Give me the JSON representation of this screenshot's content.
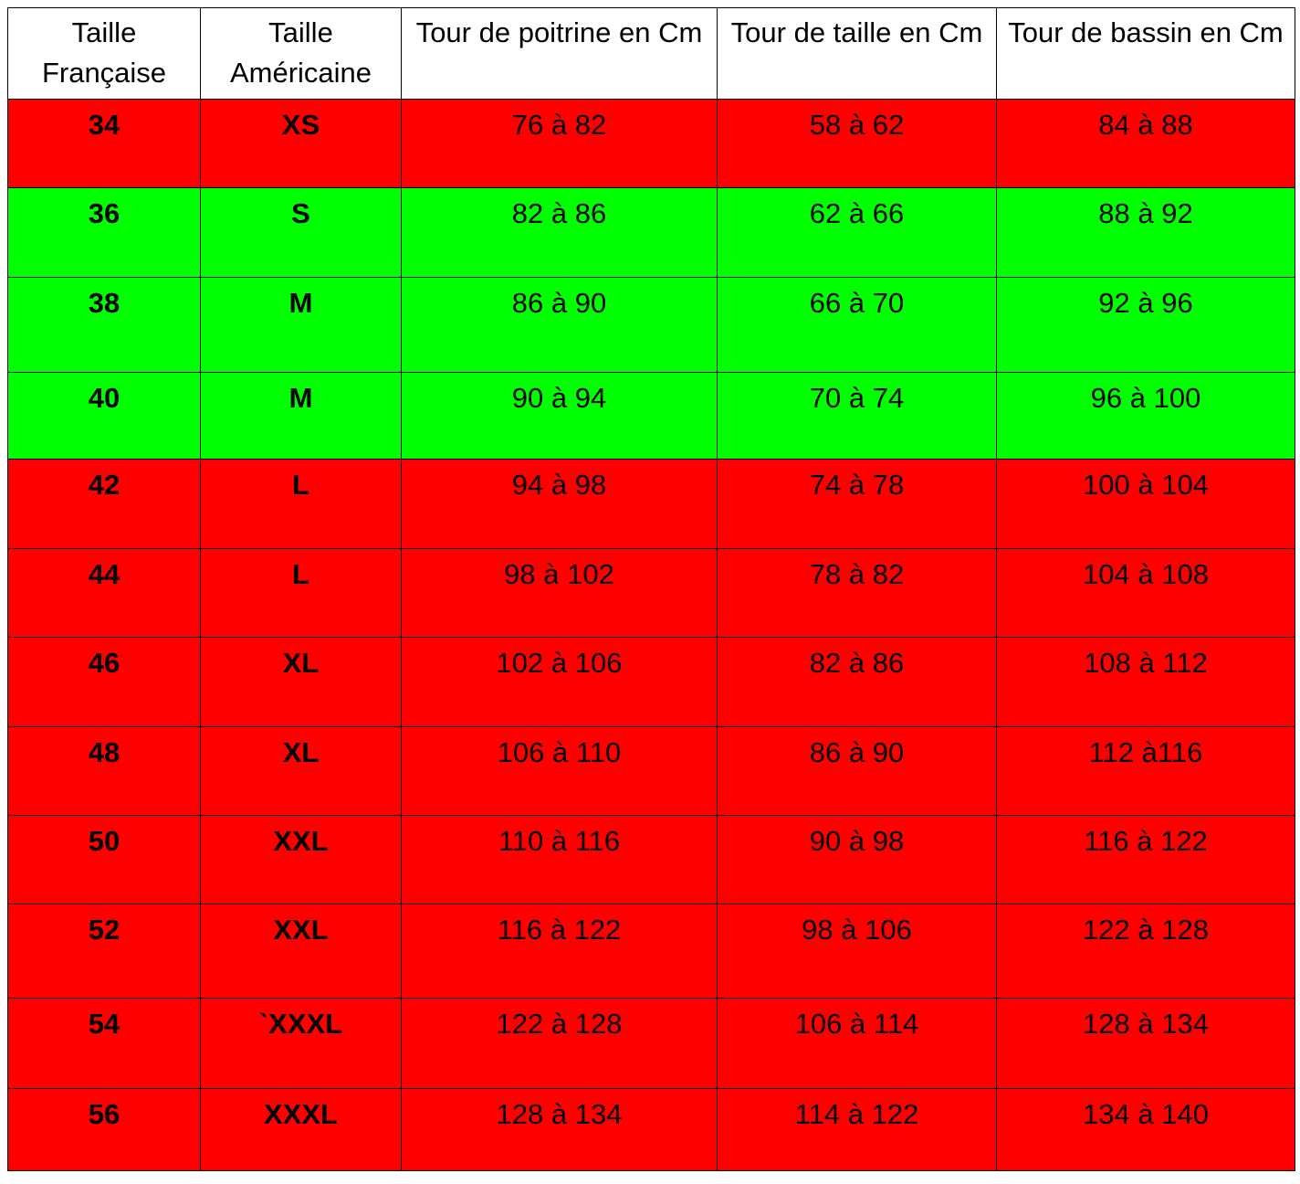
{
  "table": {
    "header": [
      "Taille Française",
      "Taille Américaine",
      "Tour de poitrine en Cm",
      "Tour de taille en Cm",
      "Tour de bassin en Cm"
    ],
    "rows": [
      {
        "color": "#ff0000",
        "cells": [
          "34",
          "XS",
          "76 à 82",
          "58 à 62",
          "84 à 88"
        ]
      },
      {
        "color": "#00ff00",
        "cells": [
          "36",
          "S",
          "82 à 86",
          "62 à 66",
          "88 à 92"
        ]
      },
      {
        "color": "#00ff00",
        "cells": [
          "38",
          "M",
          "86 à 90",
          "66 à 70",
          "92 à 96"
        ]
      },
      {
        "color": "#00ff00",
        "cells": [
          "40",
          "M",
          "90 à 94",
          "70 à 74",
          "96 à 100"
        ]
      },
      {
        "color": "#ff0000",
        "cells": [
          "42",
          "L",
          "94 à 98",
          "74 à 78",
          "100 à 104"
        ]
      },
      {
        "color": "#ff0000",
        "cells": [
          "44",
          "L",
          "98 à 102",
          "78 à 82",
          "104 à 108"
        ]
      },
      {
        "color": "#ff0000",
        "cells": [
          "46",
          "XL",
          "102 à 106",
          "82 à 86",
          "108 à 112"
        ]
      },
      {
        "color": "#ff0000",
        "cells": [
          "48",
          "XL",
          "106 à 110",
          "86 à 90",
          "112 à116"
        ]
      },
      {
        "color": "#ff0000",
        "cells": [
          "50",
          "XXL",
          "110 à 116",
          "90 à 98",
          "116 à 122"
        ]
      },
      {
        "color": "#ff0000",
        "cells": [
          "52",
          "XXL",
          "116 à 122",
          "98 à 106",
          "122 à 128"
        ]
      },
      {
        "color": "#ff0000",
        "cells": [
          "54",
          "`XXXL",
          "122 à 128",
          "106 à 114",
          "128 à 134"
        ]
      },
      {
        "color": "#ff0000",
        "cells": [
          "56",
          "XXXL",
          "128 à 134",
          "114 à 122",
          "134 à 140"
        ]
      }
    ]
  }
}
